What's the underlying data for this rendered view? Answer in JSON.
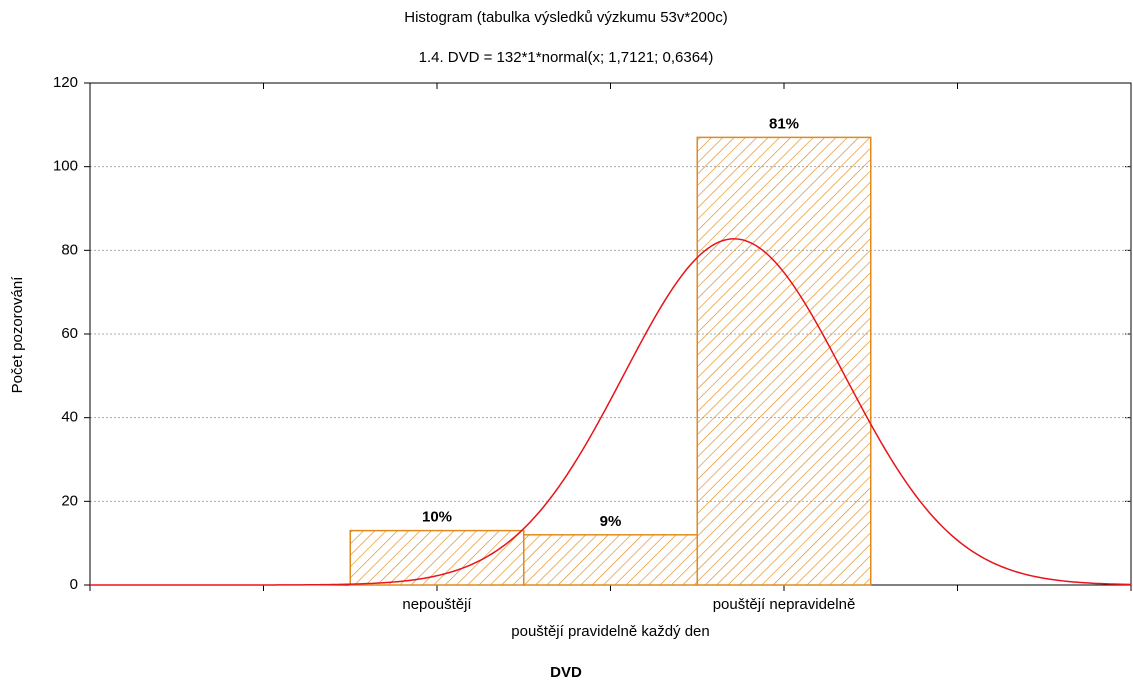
{
  "chart_data": {
    "type": "histogram",
    "title": "Histogram (tabulka výsledků výzkumu 53v*200c)",
    "subtitle": "1.4. DVD = 132*1*normal(x; 1,7121; 0,6364)",
    "x_label": "DVD",
    "y_label": "Počet pozorování",
    "categories": [
      "nepouštějí",
      "pouštějí pravidelně každý den",
      "pouštějí nepravidelně"
    ],
    "bins": [
      -0.5,
      0.5,
      1.5,
      2.5
    ],
    "values": [
      13,
      12,
      107
    ],
    "value_labels": [
      "10%",
      "9%",
      "81%"
    ],
    "color": "#e08a1e",
    "fit": {
      "name": "normal",
      "n": 132,
      "mean": 1.7121,
      "sd": 0.6364,
      "color": "#e8141c"
    },
    "xlim": [
      -2,
      4
    ],
    "xticks": [
      -2,
      -1,
      0,
      1,
      2,
      3,
      4
    ],
    "ylim": [
      0,
      120
    ],
    "yticks": [
      0,
      20,
      40,
      60,
      80,
      100,
      120
    ],
    "grid": true
  }
}
